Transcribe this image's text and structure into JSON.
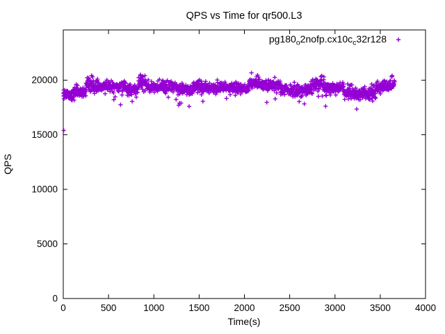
{
  "window": {
    "background": "#ffffff"
  },
  "chart_data": {
    "type": "scatter",
    "title": "QPS vs Time for qr500.L3",
    "xlabel": "Time(s)",
    "ylabel": "QPS",
    "xlim": [
      0,
      4000
    ],
    "ylim": [
      0,
      24600
    ],
    "xticks": [
      0,
      500,
      1000,
      1500,
      2000,
      2500,
      3000,
      3500,
      4000
    ],
    "yticks": [
      0,
      5000,
      10000,
      15000,
      20000
    ],
    "grid": false,
    "legend_position": "top-right-inside",
    "axis_color": "#000000",
    "marker_glyph": "+",
    "series": [
      {
        "name": "pg180_o2nofp.cx10c_c32r128",
        "label_parts": [
          {
            "t": "pg180"
          },
          {
            "t": "o",
            "sub": true
          },
          {
            "t": "2nofp.cx10c"
          },
          {
            "t": "c",
            "sub": true
          },
          {
            "t": "32r128"
          }
        ],
        "color": "#9400D3",
        "marker": "plus",
        "sample_interval_s": 2.2,
        "segments": [
          {
            "t0": 0,
            "t1": 120,
            "mean": 18750,
            "sd": 280
          },
          {
            "t0": 120,
            "t1": 250,
            "mean": 18950,
            "sd": 260
          },
          {
            "t0": 250,
            "t1": 330,
            "mean": 19600,
            "sd": 300
          },
          {
            "t0": 330,
            "t1": 700,
            "mean": 19450,
            "sd": 250
          },
          {
            "t0": 700,
            "t1": 830,
            "mean": 19100,
            "sd": 280
          },
          {
            "t0": 830,
            "t1": 920,
            "mean": 19850,
            "sd": 300
          },
          {
            "t0": 920,
            "t1": 1250,
            "mean": 19400,
            "sd": 250
          },
          {
            "t0": 1250,
            "t1": 1430,
            "mean": 19150,
            "sd": 270
          },
          {
            "t0": 1430,
            "t1": 1530,
            "mean": 19500,
            "sd": 300
          },
          {
            "t0": 1530,
            "t1": 2050,
            "mean": 19300,
            "sd": 240
          },
          {
            "t0": 2050,
            "t1": 2160,
            "mean": 19800,
            "sd": 300
          },
          {
            "t0": 2160,
            "t1": 2400,
            "mean": 19500,
            "sd": 260
          },
          {
            "t0": 2400,
            "t1": 2750,
            "mean": 19050,
            "sd": 280
          },
          {
            "t0": 2750,
            "t1": 2880,
            "mean": 19700,
            "sd": 300
          },
          {
            "t0": 2880,
            "t1": 3100,
            "mean": 19300,
            "sd": 270
          },
          {
            "t0": 3100,
            "t1": 3450,
            "mean": 18800,
            "sd": 300
          },
          {
            "t0": 3450,
            "t1": 3660,
            "mean": 19500,
            "sd": 320
          }
        ],
        "outliers": [
          [
            5,
            15400
          ],
          [
            1390,
            17600
          ],
          [
            3240,
            17350
          ]
        ]
      }
    ]
  }
}
